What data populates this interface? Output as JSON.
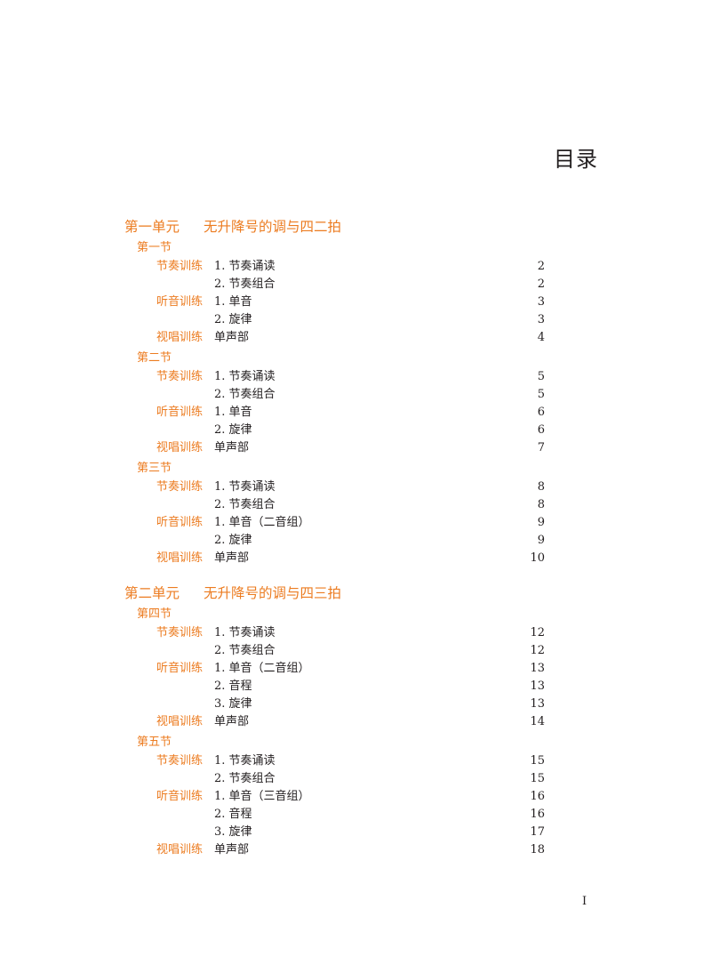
{
  "title": "目录",
  "page_number": "I",
  "units": [
    {
      "num": "第一单元",
      "title": "无升降号的调与四二拍",
      "sections": [
        {
          "title": "第一节",
          "rows": [
            {
              "cat": "节奏训练",
              "item": "1. 节奏诵读",
              "page": "2"
            },
            {
              "cat": "",
              "item": "2. 节奏组合",
              "page": "2"
            },
            {
              "cat": "听音训练",
              "item": "1. 单音",
              "page": "3"
            },
            {
              "cat": "",
              "item": "2. 旋律",
              "page": "3"
            },
            {
              "cat": "视唱训练",
              "item": "单声部",
              "page": "4"
            }
          ]
        },
        {
          "title": "第二节",
          "rows": [
            {
              "cat": "节奏训练",
              "item": "1. 节奏诵读",
              "page": "5"
            },
            {
              "cat": "",
              "item": "2. 节奏组合",
              "page": "5"
            },
            {
              "cat": "听音训练",
              "item": "1. 单音",
              "page": "6"
            },
            {
              "cat": "",
              "item": "2. 旋律",
              "page": "6"
            },
            {
              "cat": "视唱训练",
              "item": "单声部",
              "page": "7"
            }
          ]
        },
        {
          "title": "第三节",
          "rows": [
            {
              "cat": "节奏训练",
              "item": "1. 节奏诵读",
              "page": "8"
            },
            {
              "cat": "",
              "item": "2. 节奏组合",
              "page": "8"
            },
            {
              "cat": "听音训练",
              "item": "1. 单音（二音组）",
              "page": "9"
            },
            {
              "cat": "",
              "item": "2. 旋律",
              "page": "9"
            },
            {
              "cat": "视唱训练",
              "item": "单声部",
              "page": "10"
            }
          ]
        }
      ]
    },
    {
      "num": "第二单元",
      "title": "无升降号的调与四三拍",
      "sections": [
        {
          "title": "第四节",
          "rows": [
            {
              "cat": "节奏训练",
              "item": "1. 节奏诵读",
              "page": "12"
            },
            {
              "cat": "",
              "item": "2. 节奏组合",
              "page": "12"
            },
            {
              "cat": "听音训练",
              "item": "1. 单音（二音组）",
              "page": "13"
            },
            {
              "cat": "",
              "item": "2. 音程",
              "page": "13"
            },
            {
              "cat": "",
              "item": "3. 旋律",
              "page": "13"
            },
            {
              "cat": "视唱训练",
              "item": "单声部",
              "page": "14"
            }
          ]
        },
        {
          "title": "第五节",
          "rows": [
            {
              "cat": "节奏训练",
              "item": "1. 节奏诵读",
              "page": "15"
            },
            {
              "cat": "",
              "item": "2. 节奏组合",
              "page": "15"
            },
            {
              "cat": "听音训练",
              "item": "1. 单音（三音组）",
              "page": "16"
            },
            {
              "cat": "",
              "item": "2. 音程",
              "page": "16"
            },
            {
              "cat": "",
              "item": "3. 旋律",
              "page": "17"
            },
            {
              "cat": "视唱训练",
              "item": "单声部",
              "page": "18"
            }
          ]
        }
      ]
    }
  ],
  "colors": {
    "accent": "#ec7c21",
    "text": "#231f20"
  }
}
